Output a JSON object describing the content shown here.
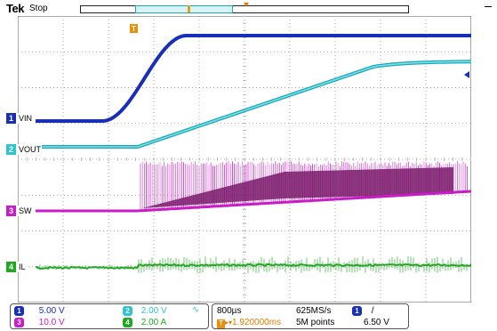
{
  "header": {
    "brand": "Tek",
    "status": "Stop"
  },
  "colors": {
    "ch1": "#1a2fb8",
    "ch2": "#2ec4d0",
    "ch3": "#c81cc8",
    "ch4": "#22a822",
    "trigger": "#e07a00",
    "grid": "#9a9a9a"
  },
  "markers": {
    "ch1": {
      "num": "1",
      "label": "VIN"
    },
    "ch2": {
      "num": "2",
      "label": "VOUT"
    },
    "ch3": {
      "num": "3",
      "label": "SW"
    },
    "ch4": {
      "num": "4",
      "label": "IL"
    },
    "trigger_icon": "trigger-T-icon"
  },
  "footer": {
    "ch1_num": "1",
    "ch1_scale": "5.00 V",
    "ch2_num": "2",
    "ch2_scale": "2.00 V",
    "ch2_bw_icon": "bandwidth-limit-icon",
    "ch3_num": "3",
    "ch3_scale": "10.0 V",
    "ch4_num": "4",
    "ch4_scale": "2.00 A",
    "timebase": "800µs",
    "sample_rate": "625MS/s",
    "trigger_pos": "1.920000ms",
    "record_length": "5M points",
    "trig_source_num": "1",
    "trig_slope": "/",
    "trig_level": "6.50 V"
  }
}
